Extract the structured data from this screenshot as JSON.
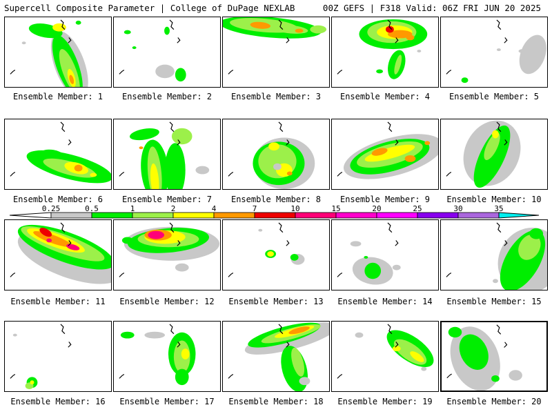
{
  "header": {
    "title_left": "Supercell Composite Parameter | College of DuPage NEXLAB",
    "title_right": "00Z GEFS | F318 Valid: 06Z FRI JUN 20 2025"
  },
  "colors": {
    "v0_25": "#c8c8c8",
    "v0_5": "#00ee00",
    "v1": "#9cf04a",
    "v2": "#ffff00",
    "v4": "#ff9900",
    "v7": "#ee0000",
    "v10": "#ff0077",
    "v15": "#ff00cc",
    "v20": "#ff00ff",
    "v25": "#8800ee",
    "v30": "#aa66dd",
    "v35": "#00eeee"
  },
  "colorbar": {
    "labels": [
      "0.25",
      "0.5",
      "1",
      "2",
      "4",
      "7",
      "10",
      "15",
      "20",
      "25",
      "30",
      "35"
    ]
  },
  "panels": [
    {
      "label": "Ensemble Member: 1"
    },
    {
      "label": "Ensemble Member: 2"
    },
    {
      "label": "Ensemble Member: 3"
    },
    {
      "label": "Ensemble Member: 4"
    },
    {
      "label": "Ensemble Member: 5"
    },
    {
      "label": "Ensemble Member: 6"
    },
    {
      "label": "Ensemble Member: 7"
    },
    {
      "label": "Ensemble Member: 8"
    },
    {
      "label": "Ensemble Member: 9"
    },
    {
      "label": "Ensemble Member: 10"
    },
    {
      "label": "Ensemble Member: 11"
    },
    {
      "label": "Ensemble Member: 12"
    },
    {
      "label": "Ensemble Member: 13"
    },
    {
      "label": "Ensemble Member: 14"
    },
    {
      "label": "Ensemble Member: 15"
    },
    {
      "label": "Ensemble Member: 16"
    },
    {
      "label": "Ensemble Member: 17"
    },
    {
      "label": "Ensemble Member: 18"
    },
    {
      "label": "Ensemble Member: 19"
    },
    {
      "label": "Ensemble Member: 20",
      "selected": true
    }
  ]
}
